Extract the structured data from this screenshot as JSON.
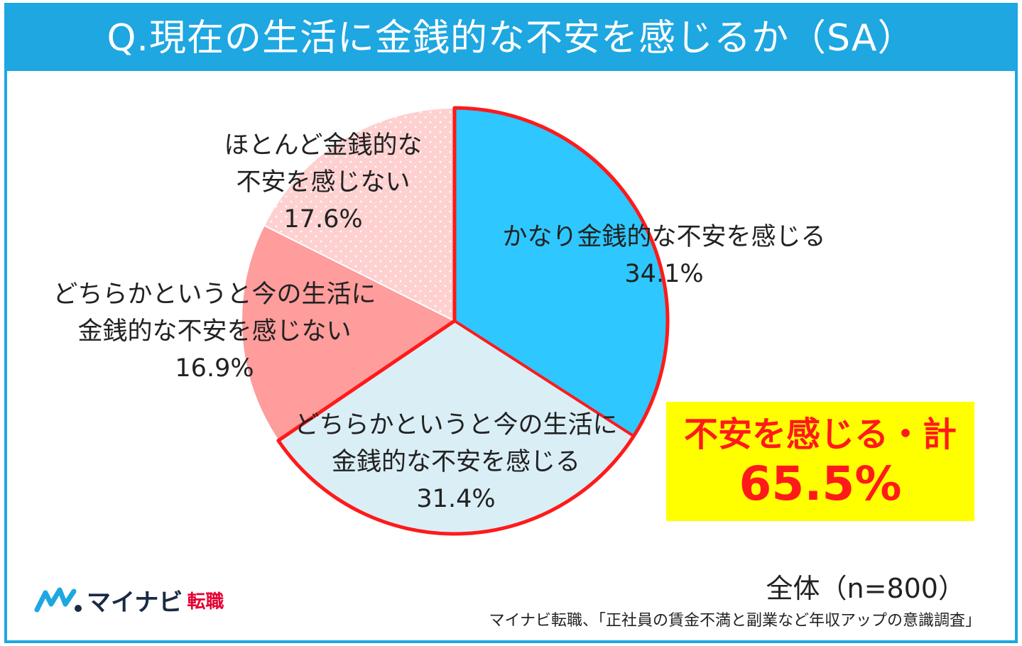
{
  "header": {
    "title": "Q.現在の生活に金銭的な不安を感じるか（SA）"
  },
  "chart_data": {
    "type": "pie",
    "title": "Q.現在の生活に金銭的な不安を感じるか（SA）",
    "slices": [
      {
        "label_lines": [
          "かなり金銭的な不安を感じる"
        ],
        "value": 34.1,
        "value_label": "34.1%",
        "color": "#2ec7ff"
      },
      {
        "label_lines": [
          "どちらかというと今の生活に",
          "金銭的な不安を感じる"
        ],
        "value": 31.4,
        "value_label": "31.4%",
        "color": "#daeef6"
      },
      {
        "label_lines": [
          "どちらかというと今の生活に",
          "金銭的な不安を感じない"
        ],
        "value": 16.9,
        "value_label": "16.9%",
        "color": "#ff9c9c"
      },
      {
        "label_lines": [
          "ほとんど金銭的な",
          "不安を感じない"
        ],
        "value": 17.6,
        "value_label": "17.6%",
        "color": "#ffd0d0"
      }
    ],
    "highlight_color": "#ff1a1a"
  },
  "total": {
    "label": "不安を感じる・計",
    "value": "65.5%"
  },
  "sample_size": "全体（n=800）",
  "source": "マイナビ転職、「正社員の賃金不満と副業など年収アップの意識調査」",
  "logo": {
    "text": "マイナビ",
    "sub": "転職"
  }
}
